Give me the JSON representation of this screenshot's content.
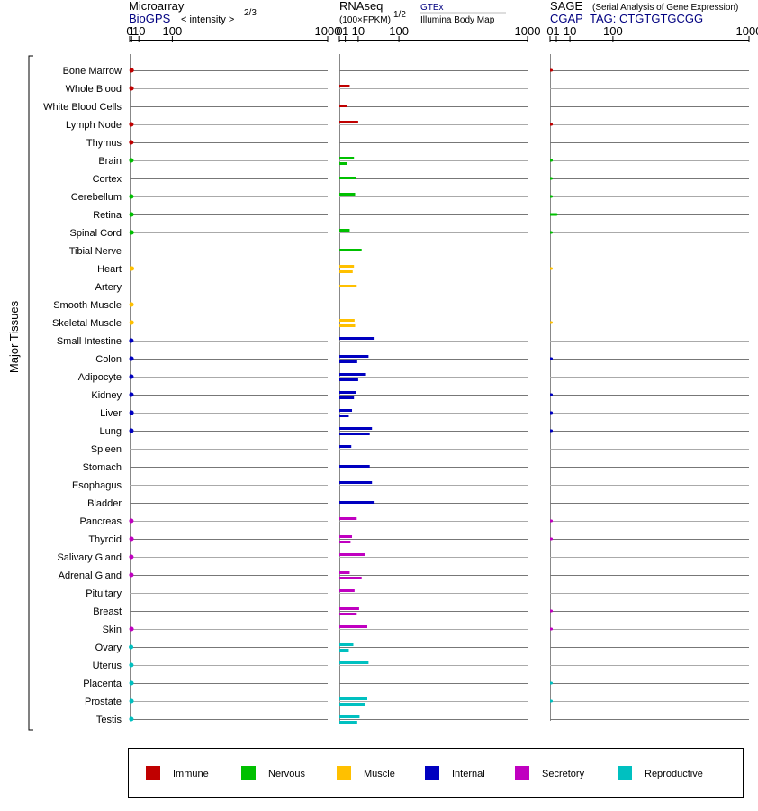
{
  "chart_data": {
    "type": "bar",
    "y_axis_label": "Major Tissues",
    "tissues": [
      {
        "name": "Bone Marrow",
        "group": "Immune"
      },
      {
        "name": "Whole Blood",
        "group": "Immune"
      },
      {
        "name": "White Blood Cells",
        "group": "Immune"
      },
      {
        "name": "Lymph Node",
        "group": "Immune"
      },
      {
        "name": "Thymus",
        "group": "Immune"
      },
      {
        "name": "Brain",
        "group": "Nervous"
      },
      {
        "name": "Cortex",
        "group": "Nervous"
      },
      {
        "name": "Cerebellum",
        "group": "Nervous"
      },
      {
        "name": "Retina",
        "group": "Nervous"
      },
      {
        "name": "Spinal Cord",
        "group": "Nervous"
      },
      {
        "name": "Tibial Nerve",
        "group": "Nervous"
      },
      {
        "name": "Heart",
        "group": "Muscle"
      },
      {
        "name": "Artery",
        "group": "Muscle"
      },
      {
        "name": "Smooth Muscle",
        "group": "Muscle"
      },
      {
        "name": "Skeletal Muscle",
        "group": "Muscle"
      },
      {
        "name": "Small Intestine",
        "group": "Internal"
      },
      {
        "name": "Colon",
        "group": "Internal"
      },
      {
        "name": "Adipocyte",
        "group": "Internal"
      },
      {
        "name": "Kidney",
        "group": "Internal"
      },
      {
        "name": "Liver",
        "group": "Internal"
      },
      {
        "name": "Lung",
        "group": "Internal"
      },
      {
        "name": "Spleen",
        "group": "Internal"
      },
      {
        "name": "Stomach",
        "group": "Internal"
      },
      {
        "name": "Esophagus",
        "group": "Internal"
      },
      {
        "name": "Bladder",
        "group": "Internal"
      },
      {
        "name": "Pancreas",
        "group": "Secretory"
      },
      {
        "name": "Thyroid",
        "group": "Secretory"
      },
      {
        "name": "Salivary Gland",
        "group": "Secretory"
      },
      {
        "name": "Adrenal Gland",
        "group": "Secretory"
      },
      {
        "name": "Pituitary",
        "group": "Secretory"
      },
      {
        "name": "Breast",
        "group": "Secretory"
      },
      {
        "name": "Skin",
        "group": "Secretory"
      },
      {
        "name": "Ovary",
        "group": "Reproductive"
      },
      {
        "name": "Uterus",
        "group": "Reproductive"
      },
      {
        "name": "Placenta",
        "group": "Reproductive"
      },
      {
        "name": "Prostate",
        "group": "Reproductive"
      },
      {
        "name": "Testis",
        "group": "Reproductive"
      }
    ],
    "legend": [
      {
        "name": "Immune",
        "color": "#c00000"
      },
      {
        "name": "Nervous",
        "color": "#00c000"
      },
      {
        "name": "Muscle",
        "color": "#ffc000"
      },
      {
        "name": "Internal",
        "color": "#0000c0"
      },
      {
        "name": "Secretory",
        "color": "#c000c0"
      },
      {
        "name": "Reproductive",
        "color": "#00c0c0"
      }
    ],
    "panels": [
      {
        "id": "microarray",
        "title": "Microarray",
        "source_label": "BioGPS",
        "scale_label": "< intensity >",
        "scale_exponent": "2/3",
        "axis_ticks": [
          "0",
          "1",
          "10",
          "100",
          "1000"
        ],
        "scale": "power-2/3",
        "xlim": [
          0,
          1000
        ],
        "rows": [
          [
            1.0
          ],
          [
            0.9
          ],
          [],
          [
            0.8
          ],
          [
            0.75
          ],
          [
            0.8
          ],
          [],
          [
            0.8
          ],
          [
            0.9
          ],
          [
            1.0
          ],
          [],
          [
            1.2
          ],
          [],
          [
            0.9
          ],
          [
            1.0
          ],
          [
            0.8
          ],
          [
            0.9
          ],
          [
            0.85
          ],
          [
            0.85
          ],
          [
            0.95
          ],
          [
            0.85
          ],
          [],
          [],
          [],
          [],
          [
            0.8
          ],
          [
            0.9
          ],
          [
            0.8
          ],
          [
            0.8
          ],
          [],
          [],
          [
            0.9
          ],
          [
            0.6
          ],
          [
            0.8
          ],
          [
            0.9
          ],
          [
            0.9
          ],
          [
            0.8
          ]
        ]
      },
      {
        "id": "rnaseq",
        "title": "RNAseq",
        "scale_label": "(100×FPKM)",
        "scale_exponent": "1/2",
        "sources": [
          "GTEx",
          "Illumina Body Map"
        ],
        "axis_ticks": [
          "0",
          "1",
          "10",
          "100",
          "1000"
        ],
        "scale": "power-1/2",
        "xlim": [
          0,
          1000
        ],
        "rows": [
          [],
          [
            3.0
          ],
          [
            1.5
          ],
          [
            10.0
          ],
          [],
          [
            6.0,
            1.5
          ],
          [
            7.5
          ],
          [
            7.0
          ],
          [],
          [
            3.0
          ],
          [
            14.0
          ],
          [
            6.0,
            5.0
          ],
          [
            8.5
          ],
          [],
          [
            6.5,
            7.0
          ],
          [
            35.0
          ],
          [
            24.0,
            9.0
          ],
          [
            20.0,
            10.0
          ],
          [
            8.0,
            6.0
          ],
          [
            4.5,
            2.5
          ],
          [
            30.0,
            26.0
          ],
          [
            4.0
          ],
          [
            26.0
          ],
          [
            30.0
          ],
          [
            35.0
          ],
          [
            8.5
          ],
          [
            4.5,
            3.5
          ],
          [
            18.0
          ],
          [
            3.0,
            14.0
          ],
          [
            6.5
          ],
          [
            11.0,
            8.5
          ],
          [
            22.0
          ],
          [
            5.5,
            2.5
          ],
          [
            24.0
          ],
          [],
          [
            22.0,
            18.0
          ],
          [
            11.5,
            9.0
          ]
        ]
      },
      {
        "id": "sage",
        "title": "SAGE",
        "title_note": "(Serial Analysis of Gene Expression)",
        "source_label": "CGAP",
        "tag_label": "TAG: CTGTGTGCGG",
        "axis_ticks": [
          "0",
          "1",
          "10",
          "100",
          "1000"
        ],
        "scale": "power-1/2",
        "xlim": [
          0,
          1000
        ],
        "rows": [
          [
            0.05
          ],
          [],
          [],
          [
            0.05
          ],
          [],
          [
            0.05
          ],
          [
            0.03
          ],
          [
            0.03
          ],
          [
            1.0
          ],
          [
            0.03
          ],
          [],
          [
            0.03
          ],
          [],
          [],
          [
            0.03
          ],
          [],
          [
            0.05
          ],
          [],
          [
            0.05
          ],
          [
            0.05
          ],
          [
            0.05
          ],
          [],
          [],
          [],
          [],
          [
            0.05
          ],
          [
            0.05
          ],
          [],
          [],
          [],
          [
            0.05
          ],
          [
            0.05
          ],
          [],
          [],
          [
            0.03
          ],
          [
            0.03
          ],
          []
        ]
      }
    ]
  }
}
